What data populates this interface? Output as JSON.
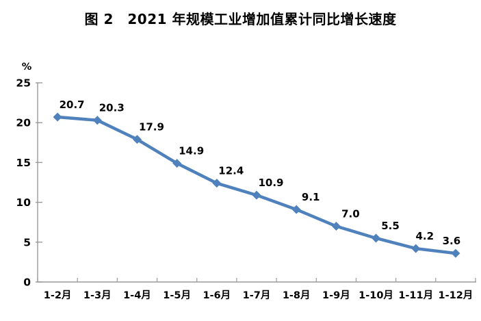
{
  "figure": {
    "title": "图 2　2021 年规模工业增加值累计同比增长速度"
  },
  "chart_data": {
    "type": "line",
    "title": "图 2　2021 年规模工业增加值累计同比增长速度",
    "categories": [
      "1-2月",
      "1-3月",
      "1-4月",
      "1-5月",
      "1-6月",
      "1-7月",
      "1-8月",
      "1-9月",
      "1-10月",
      "1-11月",
      "1-12月"
    ],
    "values": [
      20.7,
      20.3,
      17.9,
      14.9,
      12.4,
      10.9,
      9.1,
      7.0,
      5.5,
      4.2,
      3.6
    ],
    "data_labels": [
      "20.7",
      "20.3",
      "17.9",
      "14.9",
      "12.4",
      "10.9",
      "9.1",
      "7.0",
      "5.5",
      "4.2",
      "3.6"
    ],
    "unit_label": "%",
    "xlabel": "",
    "ylabel": "%",
    "ylim": [
      0,
      25
    ],
    "yticks": [
      0,
      5,
      10,
      15,
      20,
      25
    ],
    "grid": false,
    "legend": "none",
    "marker": "diamond",
    "colors": {
      "line": "#4f81bd",
      "marker": "#4f81bd",
      "axis": "#9a9a9a",
      "text": "#000000"
    }
  }
}
